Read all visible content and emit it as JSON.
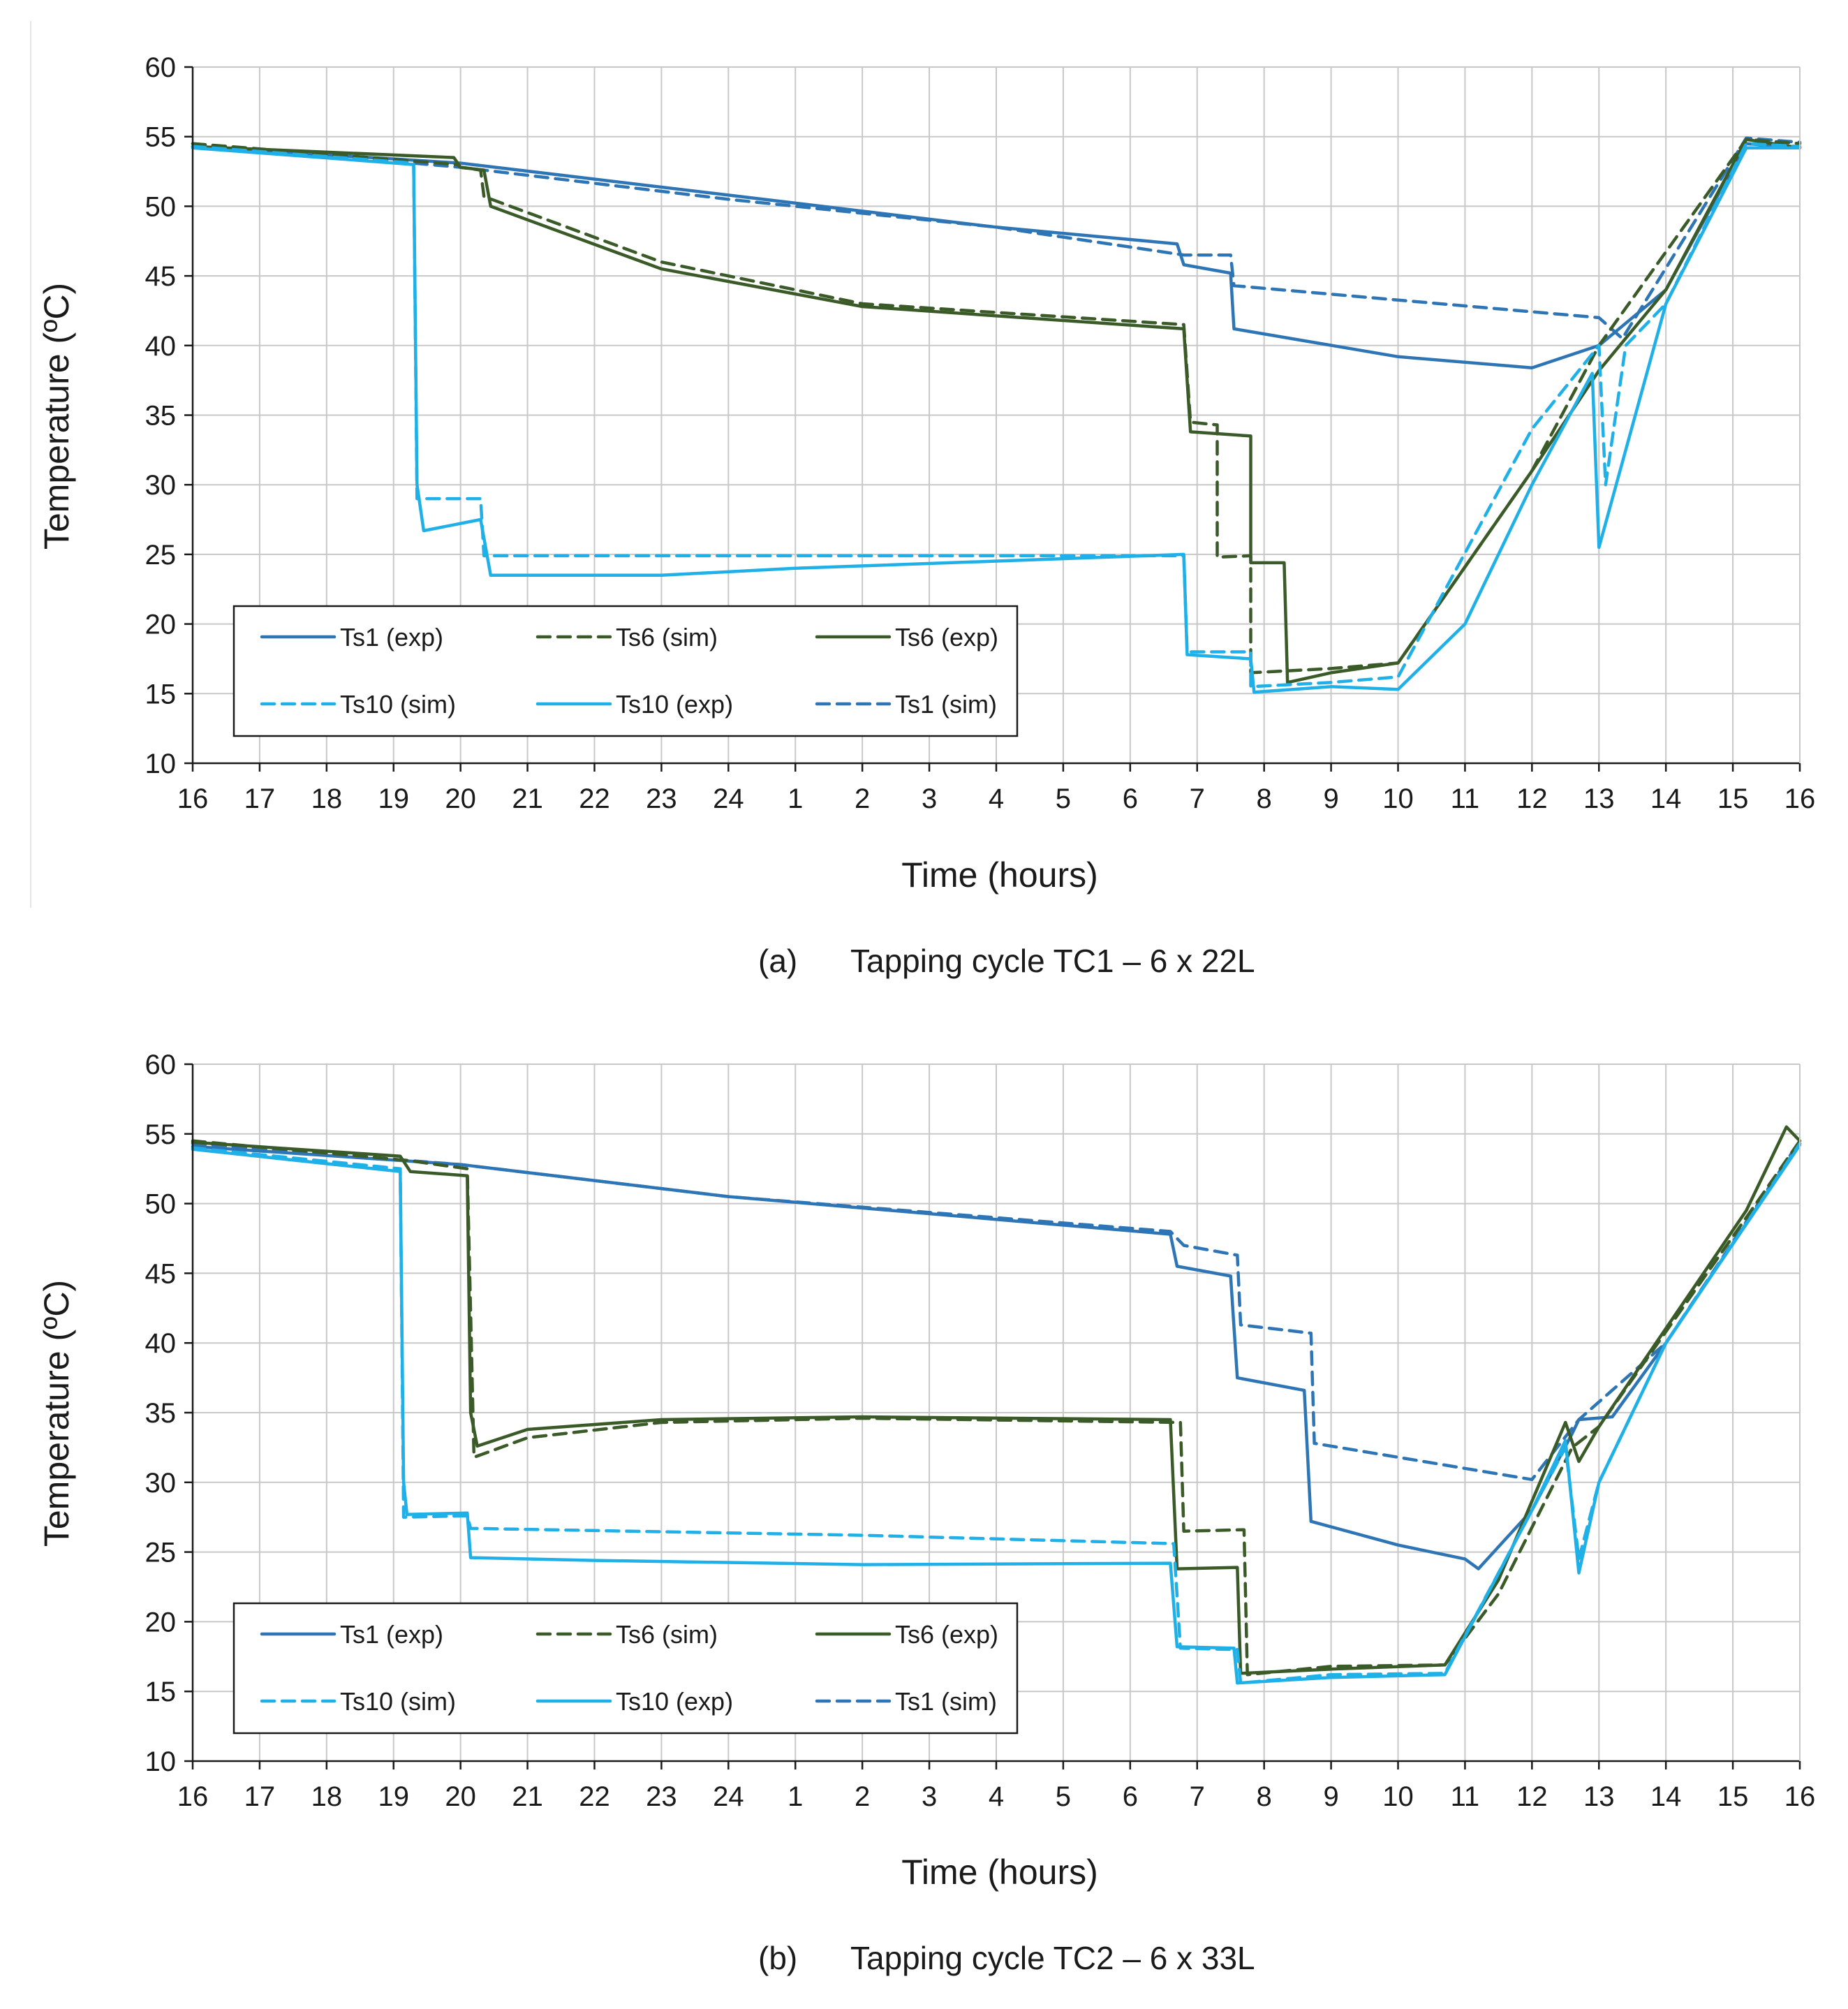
{
  "figure": {
    "axis_color": "#1a1a1a",
    "grid_color": "#c8c8c8"
  },
  "chart_data": [
    {
      "type": "line",
      "caption_label": "(a)",
      "caption_text": "Tapping cycle TC1 – 6 x 22L",
      "xlabel": "Time (hours)",
      "ylabel": "Temperature (ºC)",
      "xlim": [
        0,
        24
      ],
      "ylim": [
        10,
        60
      ],
      "y_ticks": [
        10,
        15,
        20,
        25,
        30,
        35,
        40,
        45,
        50,
        55,
        60
      ],
      "x_tick_labels": [
        "16",
        "17",
        "18",
        "19",
        "20",
        "21",
        "22",
        "23",
        "24",
        "1",
        "2",
        "3",
        "4",
        "5",
        "6",
        "7",
        "8",
        "9",
        "10",
        "11",
        "12",
        "13",
        "14",
        "15",
        "16"
      ],
      "x_note": "x is elapsed hours since 16:00",
      "grid": true,
      "legend_position": "bottom-left",
      "legend": [
        {
          "key": "ts1_exp",
          "label": "Ts1 (exp)"
        },
        {
          "key": "ts6_sim",
          "label": "Ts6 (sim)"
        },
        {
          "key": "ts6_exp",
          "label": "Ts6 (exp)"
        },
        {
          "key": "ts10_sim",
          "label": "Ts10 (sim)"
        },
        {
          "key": "ts10_exp",
          "label": "Ts10 (exp)"
        },
        {
          "key": "ts1_sim",
          "label": "Ts1 (sim)"
        }
      ],
      "series": [
        {
          "key": "ts1_sim",
          "name": "Ts1 (sim)",
          "color": "#2e75b6",
          "dashed": true,
          "points": [
            [
              0,
              54.5
            ],
            [
              4,
              52.8
            ],
            [
              8,
              50.5
            ],
            [
              12,
              48.5
            ],
            [
              14.8,
              46.5
            ],
            [
              15.5,
              46.5
            ],
            [
              15.55,
              44.3
            ],
            [
              21,
              42
            ],
            [
              21.35,
              40.5
            ],
            [
              23.2,
              54.9
            ],
            [
              24,
              54.6
            ]
          ]
        },
        {
          "key": "ts1_exp",
          "name": "Ts1 (exp)",
          "color": "#2e75b6",
          "dashed": false,
          "points": [
            [
              0,
              54.3
            ],
            [
              4,
              53.1
            ],
            [
              8,
              50.8
            ],
            [
              12,
              48.5
            ],
            [
              14.7,
              47.3
            ],
            [
              14.8,
              45.8
            ],
            [
              15.5,
              45.2
            ],
            [
              15.55,
              41.2
            ],
            [
              18,
              39.2
            ],
            [
              20,
              38.4
            ],
            [
              21,
              40
            ],
            [
              22,
              44
            ],
            [
              23.2,
              54.5
            ],
            [
              24,
              54.2
            ]
          ]
        },
        {
          "key": "ts6_sim",
          "name": "Ts6 (sim)",
          "color": "#3a5a28",
          "dashed": true,
          "points": [
            [
              0,
              54.5
            ],
            [
              3.95,
              53
            ],
            [
              4,
              52.8
            ],
            [
              4.3,
              52.6
            ],
            [
              4.35,
              50.7
            ],
            [
              7,
              46
            ],
            [
              10,
              43
            ],
            [
              14.8,
              41.5
            ],
            [
              14.9,
              34.5
            ],
            [
              15.3,
              34.3
            ],
            [
              15.3,
              24.8
            ],
            [
              15.8,
              24.9
            ],
            [
              15.8,
              16.5
            ],
            [
              17,
              16.8
            ],
            [
              18,
              17.2
            ],
            [
              20,
              31
            ],
            [
              21,
              40
            ],
            [
              23.2,
              54.8
            ],
            [
              24,
              54.5
            ]
          ]
        },
        {
          "key": "ts6_exp",
          "name": "Ts6 (exp)",
          "color": "#3a5a28",
          "dashed": false,
          "points": [
            [
              0,
              54.3
            ],
            [
              3.9,
              53.5
            ],
            [
              4,
              52.8
            ],
            [
              4.35,
              52.6
            ],
            [
              4.45,
              50
            ],
            [
              7,
              45.5
            ],
            [
              10,
              42.8
            ],
            [
              14.8,
              41.2
            ],
            [
              14.9,
              33.8
            ],
            [
              15.8,
              33.5
            ],
            [
              15.8,
              24.4
            ],
            [
              16.3,
              24.4
            ],
            [
              16.35,
              15.8
            ],
            [
              17,
              16.5
            ],
            [
              18,
              17.2
            ],
            [
              20,
              31
            ],
            [
              21,
              38.2
            ],
            [
              22,
              44
            ],
            [
              23.2,
              54.8
            ],
            [
              24,
              54.2
            ]
          ]
        },
        {
          "key": "ts10_sim",
          "name": "Ts10 (sim)",
          "color": "#1fb0e8",
          "dashed": true,
          "points": [
            [
              0,
              54.3
            ],
            [
              3.3,
              53.1
            ],
            [
              3.35,
              29
            ],
            [
              4.3,
              29
            ],
            [
              4.35,
              24.9
            ],
            [
              14.8,
              24.9
            ],
            [
              14.85,
              18
            ],
            [
              15.8,
              18
            ],
            [
              15.8,
              15.5
            ],
            [
              17,
              15.8
            ],
            [
              18,
              16.2
            ],
            [
              20,
              34
            ],
            [
              21,
              40
            ],
            [
              21.1,
              30
            ],
            [
              21.4,
              40
            ],
            [
              22,
              43
            ],
            [
              23.2,
              54.5
            ],
            [
              24,
              54.3
            ]
          ]
        },
        {
          "key": "ts10_exp",
          "name": "Ts10 (exp)",
          "color": "#1fb0e8",
          "dashed": false,
          "points": [
            [
              0,
              54.2
            ],
            [
              3.3,
              53
            ],
            [
              3.35,
              30
            ],
            [
              3.45,
              26.7
            ],
            [
              4.3,
              27.5
            ],
            [
              4.45,
              23.5
            ],
            [
              7,
              23.5
            ],
            [
              9,
              24
            ],
            [
              14.8,
              25
            ],
            [
              14.85,
              17.8
            ],
            [
              15.8,
              17.5
            ],
            [
              15.85,
              15.1
            ],
            [
              17,
              15.5
            ],
            [
              18,
              15.3
            ],
            [
              19,
              20
            ],
            [
              20,
              30
            ],
            [
              20.9,
              38
            ],
            [
              21,
              25.5
            ],
            [
              22,
              43
            ],
            [
              23.2,
              54.2
            ],
            [
              24,
              54.2
            ]
          ]
        }
      ]
    },
    {
      "type": "line",
      "caption_label": "(b)",
      "caption_text": "Tapping cycle TC2 – 6 x 33L",
      "xlabel": "Time (hours)",
      "ylabel": "Temperature (ºC)",
      "xlim": [
        0,
        24
      ],
      "ylim": [
        10,
        60
      ],
      "y_ticks": [
        10,
        15,
        20,
        25,
        30,
        35,
        40,
        45,
        50,
        55,
        60
      ],
      "x_tick_labels": [
        "16",
        "17",
        "18",
        "19",
        "20",
        "21",
        "22",
        "23",
        "24",
        "1",
        "2",
        "3",
        "4",
        "5",
        "6",
        "7",
        "8",
        "9",
        "10",
        "11",
        "12",
        "13",
        "14",
        "15",
        "16"
      ],
      "x_note": "x is elapsed hours since 16:00",
      "grid": true,
      "legend_position": "bottom-left",
      "legend": [
        {
          "key": "ts1_exp",
          "label": "Ts1 (exp)"
        },
        {
          "key": "ts6_sim",
          "label": "Ts6 (sim)"
        },
        {
          "key": "ts6_exp",
          "label": "Ts6 (exp)"
        },
        {
          "key": "ts10_sim",
          "label": "Ts10 (sim)"
        },
        {
          "key": "ts10_exp",
          "label": "Ts10 (exp)"
        },
        {
          "key": "ts1_sim",
          "label": "Ts1 (sim)"
        }
      ],
      "series": [
        {
          "key": "ts1_sim",
          "name": "Ts1 (sim)",
          "color": "#2e75b6",
          "dashed": true,
          "points": [
            [
              0,
              54.3
            ],
            [
              4,
              52.8
            ],
            [
              8,
              50.5
            ],
            [
              14.6,
              48
            ],
            [
              14.8,
              47
            ],
            [
              15.6,
              46.3
            ],
            [
              15.65,
              41.3
            ],
            [
              16.7,
              40.7
            ],
            [
              16.75,
              32.8
            ],
            [
              20,
              30.2
            ],
            [
              20.7,
              34.5
            ],
            [
              22,
              40
            ],
            [
              24,
              54.5
            ]
          ]
        },
        {
          "key": "ts1_exp",
          "name": "Ts1 (exp)",
          "color": "#2e75b6",
          "dashed": false,
          "points": [
            [
              0,
              54.1
            ],
            [
              4,
              52.8
            ],
            [
              8,
              50.5
            ],
            [
              14.6,
              47.8
            ],
            [
              14.7,
              45.5
            ],
            [
              15.5,
              44.8
            ],
            [
              15.6,
              37.5
            ],
            [
              16.6,
              36.6
            ],
            [
              16.7,
              27.2
            ],
            [
              18,
              25.5
            ],
            [
              19,
              24.5
            ],
            [
              19.2,
              23.8
            ],
            [
              20,
              28
            ],
            [
              20.6,
              33.5
            ],
            [
              20.7,
              34.5
            ],
            [
              21.2,
              34.7
            ],
            [
              22,
              40
            ],
            [
              24,
              54.3
            ]
          ]
        },
        {
          "key": "ts6_sim",
          "name": "Ts6 (sim)",
          "color": "#3a5a28",
          "dashed": true,
          "points": [
            [
              0,
              54.5
            ],
            [
              3.2,
              53.1
            ],
            [
              4.1,
              52.5
            ],
            [
              4.2,
              31.8
            ],
            [
              5,
              33.2
            ],
            [
              7,
              34.3
            ],
            [
              10,
              34.6
            ],
            [
              14.75,
              34.3
            ],
            [
              14.8,
              26.5
            ],
            [
              15.7,
              26.6
            ],
            [
              15.75,
              16.2
            ],
            [
              17,
              16.8
            ],
            [
              18.7,
              16.9
            ],
            [
              19.5,
              22
            ],
            [
              20.6,
              32.5
            ],
            [
              21,
              34
            ],
            [
              23.2,
              49
            ],
            [
              24,
              54.5
            ]
          ]
        },
        {
          "key": "ts6_exp",
          "name": "Ts6 (exp)",
          "color": "#3a5a28",
          "dashed": false,
          "points": [
            [
              0,
              54.4
            ],
            [
              3.1,
              53.4
            ],
            [
              3.25,
              52.3
            ],
            [
              4.1,
              52
            ],
            [
              4.15,
              35
            ],
            [
              4.25,
              32.6
            ],
            [
              5,
              33.8
            ],
            [
              7,
              34.5
            ],
            [
              10,
              34.7
            ],
            [
              14.6,
              34.5
            ],
            [
              14.7,
              23.8
            ],
            [
              15.6,
              23.9
            ],
            [
              15.65,
              16.3
            ],
            [
              17,
              16.6
            ],
            [
              18.7,
              16.9
            ],
            [
              19.5,
              23
            ],
            [
              20.5,
              34.3
            ],
            [
              20.7,
              31.5
            ],
            [
              21,
              34
            ],
            [
              23.2,
              49.5
            ],
            [
              23.8,
              55.5
            ],
            [
              24,
              54.5
            ]
          ]
        },
        {
          "key": "ts10_sim",
          "name": "Ts10 (sim)",
          "color": "#1fb0e8",
          "dashed": true,
          "points": [
            [
              0,
              54
            ],
            [
              3.1,
              52.5
            ],
            [
              3.15,
              27.5
            ],
            [
              4.1,
              27.6
            ],
            [
              4.15,
              26.7
            ],
            [
              10,
              26.2
            ],
            [
              14.65,
              25.6
            ],
            [
              14.75,
              18.1
            ],
            [
              15.6,
              18
            ],
            [
              15.65,
              15.6
            ],
            [
              17,
              16.2
            ],
            [
              18.7,
              16.3
            ],
            [
              20.5,
              32.5
            ],
            [
              20.7,
              24.5
            ],
            [
              21,
              30
            ],
            [
              22,
              40
            ],
            [
              24,
              54.3
            ]
          ]
        },
        {
          "key": "ts10_exp",
          "name": "Ts10 (exp)",
          "color": "#1fb0e8",
          "dashed": false,
          "points": [
            [
              0,
              53.9
            ],
            [
              3.1,
              52.3
            ],
            [
              3.15,
              30
            ],
            [
              3.2,
              27.7
            ],
            [
              4.1,
              27.8
            ],
            [
              4.15,
              24.6
            ],
            [
              6,
              24.4
            ],
            [
              10,
              24.1
            ],
            [
              14.6,
              24.2
            ],
            [
              14.7,
              18.2
            ],
            [
              15.55,
              18.1
            ],
            [
              15.6,
              15.6
            ],
            [
              17,
              16
            ],
            [
              18.7,
              16.2
            ],
            [
              20,
              28
            ],
            [
              20.5,
              33
            ],
            [
              20.7,
              23.5
            ],
            [
              21,
              30
            ],
            [
              22,
              40
            ],
            [
              24,
              54.2
            ]
          ]
        }
      ]
    }
  ]
}
